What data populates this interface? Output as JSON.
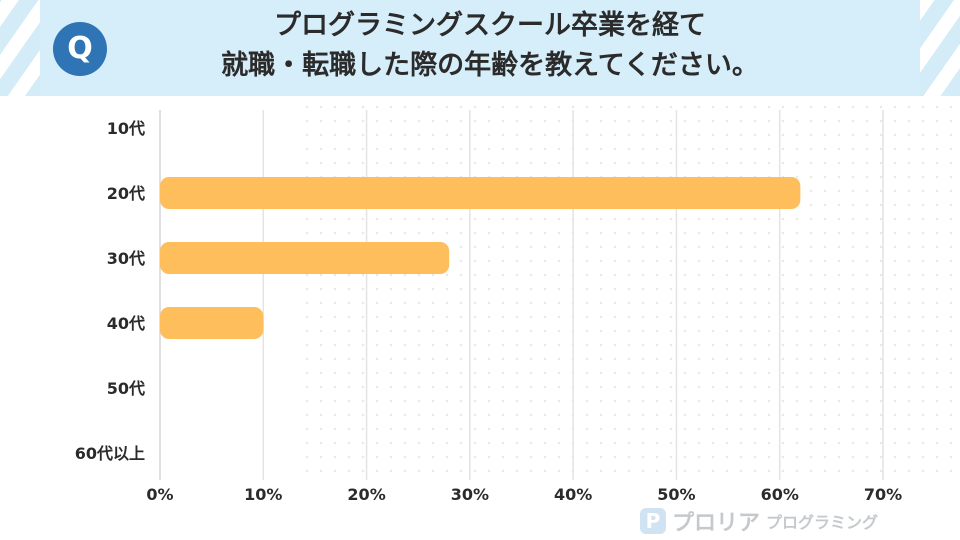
{
  "header": {
    "badge": "Q",
    "title_line1": "プログラミングスクール卒業を経て",
    "title_line2": "就職・転職した際の年齢を教えてください。"
  },
  "chart_data": {
    "type": "bar",
    "orientation": "horizontal",
    "title": "プログラミングスクール卒業を経て就職・転職した際の年齢を教えてください。",
    "categories": [
      "10代",
      "20代",
      "30代",
      "40代",
      "50代",
      "60代以上"
    ],
    "values": [
      0,
      62,
      28,
      10,
      0,
      0
    ],
    "value_unit": "%",
    "xlim": [
      0,
      70
    ],
    "xticks": [
      0,
      10,
      20,
      30,
      40,
      50,
      60,
      70
    ],
    "xtick_labels": [
      "0%",
      "10%",
      "20%",
      "30%",
      "40%",
      "50%",
      "60%",
      "70%"
    ],
    "grid": "vertical",
    "bar_color": "#ffbe5c",
    "legend": "none"
  },
  "footer": {
    "logo_name": "プロリア",
    "logo_sub": "プログラミング"
  }
}
